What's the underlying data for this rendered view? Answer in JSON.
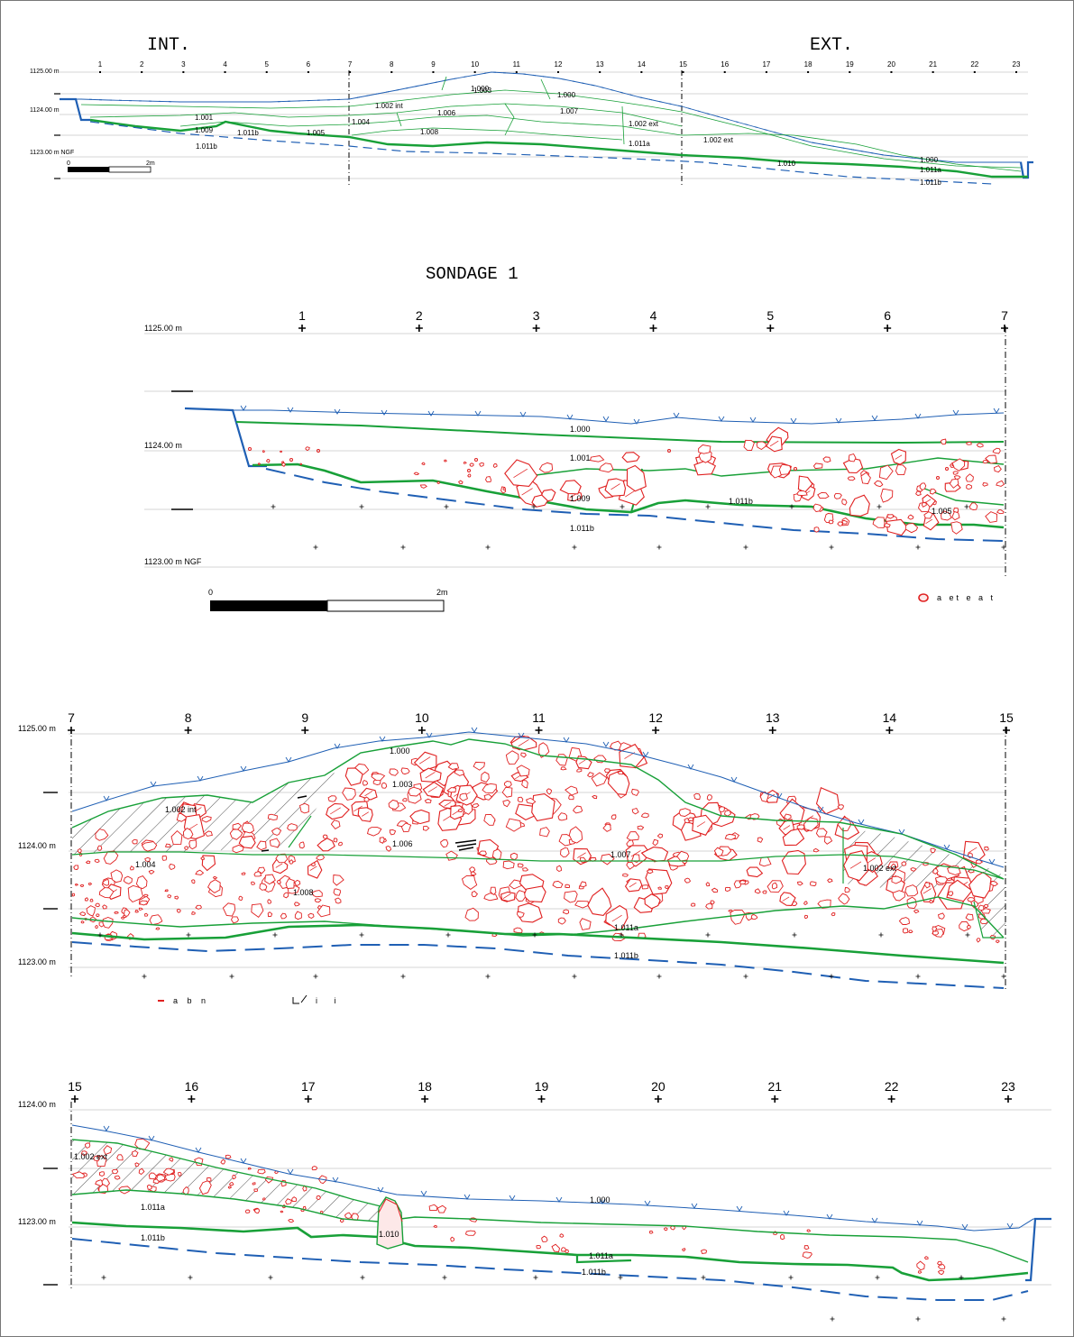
{
  "overview": {
    "label_int": "INT.",
    "label_ext": "EXT.",
    "levels": [
      "1125.00 m",
      "1124.00 m",
      "1123.00 m NGF"
    ],
    "columns": [
      "1",
      "2",
      "3",
      "4",
      "5",
      "6",
      "7",
      "8",
      "9",
      "10",
      "11",
      "12",
      "13",
      "14",
      "15",
      "16",
      "17",
      "18",
      "19",
      "20",
      "21",
      "22",
      "23"
    ],
    "units": [
      "1.000",
      "1.003",
      "1.000",
      "1.002 int",
      "1.006",
      "1.007",
      "1.001",
      "1.004",
      "1.002 ext",
      "1.009",
      "1.011b",
      "1.005",
      "1.008",
      "1.011a",
      "1.002 ext",
      "1.011b",
      "1.010",
      "1.000",
      "1.011a",
      "1.011b"
    ],
    "scale_start": "0",
    "scale_end": "2m"
  },
  "sondage_title": "SONDAGE 1",
  "panel1": {
    "levels": [
      "1125.00 m",
      "1124.00 m",
      "1123.00 m NGF"
    ],
    "columns": [
      "1",
      "2",
      "3",
      "4",
      "5",
      "6",
      "7"
    ],
    "units": [
      "1.000",
      "1.001",
      "1.009",
      "1.011b",
      "1.011b",
      "1.005"
    ],
    "scale_start": "0",
    "scale_end": "2m",
    "legend_text": "a et e a t"
  },
  "panel2": {
    "levels": [
      "1125.00 m",
      "1124.00 m",
      "1123.00 m"
    ],
    "columns": [
      "7",
      "8",
      "9",
      "10",
      "11",
      "12",
      "13",
      "14",
      "15"
    ],
    "units": [
      "1.000",
      "1.003",
      "1.002 int",
      "1.006",
      "1.004",
      "1.007",
      "1.008",
      "1.002 ext",
      "1.011a",
      "1.011b"
    ],
    "legend_a": "a b n",
    "legend_b": "i i"
  },
  "panel3": {
    "levels": [
      "1124.00 m",
      "1123.00 m"
    ],
    "columns": [
      "15",
      "16",
      "17",
      "18",
      "19",
      "20",
      "21",
      "22",
      "23"
    ],
    "units": [
      "1.002 ext",
      "1.011a",
      "1.011b",
      "1.000",
      "1.010",
      "1.011a",
      "1.011b"
    ]
  },
  "colors": {
    "surface": "#1f5fb4",
    "layer": "#18a038",
    "stone": "#e02020",
    "stone_fill": "#fde8e8",
    "bedrock": "#1f5fb4",
    "hatch": "#222222"
  }
}
